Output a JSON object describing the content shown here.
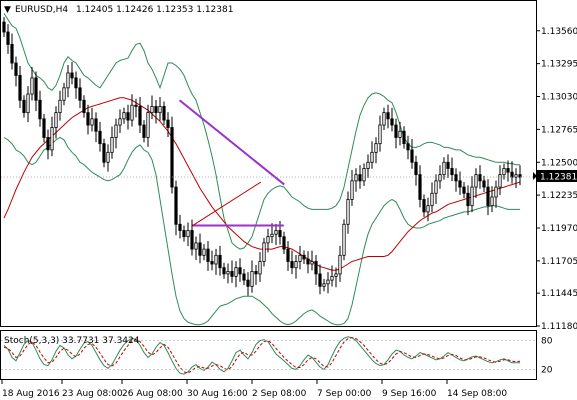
{
  "header": {
    "symbol": "EURUSD,H4",
    "ohlc": "1.12405 1.12426 1.12353 1.12381",
    "dropdown_glyph": "▼"
  },
  "indicator": {
    "label": "Stoch(5,3,3) 33.7731 37.3424"
  },
  "colors": {
    "bg": "#ffffff",
    "axis": "#000000",
    "candle": "#000000",
    "bollinger": "#2e8b57",
    "ma": "#c00000",
    "trendline": "#9932cc",
    "stoch_main": "#2e8b57",
    "stoch_signal": "#c00000",
    "price_tag_bg": "#000000",
    "price_tag_text": "#ffffff"
  },
  "chart_data": [
    {
      "type": "candlestick",
      "symbol": "EURUSD",
      "timeframe": "H4",
      "ylim": [
        1.1118,
        1.138
      ],
      "y_ticks": [
        "1.13560",
        "1.13295",
        "1.13030",
        "1.12765",
        "1.12500",
        "1.12235",
        "1.11970",
        "1.11705",
        "1.11445",
        "1.11180"
      ],
      "x_ticks": [
        "18 Aug 2016",
        "23 Aug 08:00",
        "26 Aug 08:00",
        "30 Aug 16:00",
        "2 Sep 08:00",
        "7 Sep 00:00",
        "9 Sep 16:00",
        "14 Sep 08:00"
      ],
      "current_price": "1.12381",
      "close": [
        1.1355,
        1.1345,
        1.133,
        1.132,
        1.13,
        1.129,
        1.1305,
        1.1318,
        1.13,
        1.1285,
        1.127,
        1.126,
        1.1278,
        1.129,
        1.13,
        1.131,
        1.1322,
        1.1318,
        1.131,
        1.13,
        1.129,
        1.128,
        1.1285,
        1.1275,
        1.1265,
        1.125,
        1.1258,
        1.127,
        1.128,
        1.1285,
        1.129,
        1.1284,
        1.1296,
        1.1295,
        1.128,
        1.127,
        1.129,
        1.1295,
        1.129,
        1.1295,
        1.1284,
        1.1278,
        1.123,
        1.12,
        1.1195,
        1.119,
        1.1195,
        1.118,
        1.1185,
        1.1175,
        1.118,
        1.117,
        1.1168,
        1.1175,
        1.1165,
        1.116,
        1.1162,
        1.1158,
        1.1165,
        1.116,
        1.1155,
        1.115,
        1.1162,
        1.116,
        1.117,
        1.1185,
        1.119,
        1.1192,
        1.1195,
        1.119,
        1.118,
        1.117,
        1.1165,
        1.117,
        1.1175,
        1.1172,
        1.1168,
        1.117,
        1.116,
        1.115,
        1.1152,
        1.1155,
        1.1158,
        1.116,
        1.1175,
        1.12,
        1.122,
        1.1235,
        1.124,
        1.1235,
        1.1245,
        1.125,
        1.1258,
        1.1265,
        1.128,
        1.129,
        1.1285,
        1.128,
        1.127,
        1.1275,
        1.1265,
        1.126,
        1.125,
        1.124,
        1.122,
        1.121,
        1.1215,
        1.1225,
        1.1235,
        1.124,
        1.125,
        1.1245,
        1.124,
        1.1235,
        1.123,
        1.1225,
        1.1215,
        1.123,
        1.124,
        1.1235,
        1.123,
        1.1215,
        1.1222,
        1.123,
        1.124,
        1.1245,
        1.1242,
        1.1238,
        1.124,
        1.1238
      ],
      "bollinger_upper": [
        1.137,
        1.1365,
        1.136,
        1.1358,
        1.135,
        1.134,
        1.133,
        1.1325,
        1.132,
        1.1318,
        1.1315,
        1.131,
        1.1308,
        1.1312,
        1.132,
        1.133,
        1.1335,
        1.1332,
        1.133,
        1.1325,
        1.132,
        1.1318,
        1.1315,
        1.1312,
        1.131,
        1.1315,
        1.132,
        1.1325,
        1.133,
        1.1332,
        1.1333,
        1.1334,
        1.134,
        1.1345,
        1.1346,
        1.134,
        1.133,
        1.1325,
        1.1318,
        1.131,
        1.132,
        1.133,
        1.133,
        1.1328,
        1.1325,
        1.132,
        1.1312,
        1.1305,
        1.13,
        1.129,
        1.128,
        1.1268,
        1.1255,
        1.124,
        1.1222,
        1.1205,
        1.1195,
        1.1185,
        1.1182,
        1.118,
        1.1181,
        1.1185,
        1.119,
        1.12,
        1.121,
        1.122,
        1.1225,
        1.1228,
        1.123,
        1.1231,
        1.123,
        1.1226,
        1.1222,
        1.122,
        1.1218,
        1.1215,
        1.1213,
        1.1212,
        1.1212,
        1.1212,
        1.1212,
        1.1212,
        1.1213,
        1.1215,
        1.122,
        1.123,
        1.1245,
        1.126,
        1.1275,
        1.1288,
        1.1296,
        1.1302,
        1.1305,
        1.1306,
        1.1305,
        1.1303,
        1.13,
        1.1298,
        1.129,
        1.128,
        1.127,
        1.1265,
        1.1262,
        1.1262,
        1.1263,
        1.1265,
        1.1266,
        1.1266,
        1.1265,
        1.1264,
        1.1262,
        1.1262,
        1.1261,
        1.126,
        1.126,
        1.1258,
        1.1256,
        1.1255,
        1.1254,
        1.1254,
        1.1253,
        1.1252,
        1.1251,
        1.125,
        1.125,
        1.125,
        1.1249,
        1.1249,
        1.1248,
        1.1248
      ],
      "bollinger_lower": [
        1.127,
        1.1268,
        1.1265,
        1.126,
        1.1258,
        1.1255,
        1.125,
        1.1248,
        1.125,
        1.1255,
        1.126,
        1.1262,
        1.1265,
        1.1268,
        1.127,
        1.1268,
        1.1262,
        1.1258,
        1.1255,
        1.125,
        1.1248,
        1.1245,
        1.1242,
        1.124,
        1.1238,
        1.1236,
        1.1235,
        1.1236,
        1.1238,
        1.124,
        1.1245,
        1.1252,
        1.1258,
        1.1262,
        1.1264,
        1.126,
        1.1258,
        1.1252,
        1.124,
        1.122,
        1.12,
        1.118,
        1.116,
        1.1142,
        1.113,
        1.1124,
        1.1121,
        1.112,
        1.1119,
        1.1119,
        1.112,
        1.1122,
        1.1126,
        1.113,
        1.1134,
        1.1135,
        1.1136,
        1.1138,
        1.114,
        1.1141,
        1.1142,
        1.1142,
        1.1142,
        1.114,
        1.1138,
        1.1135,
        1.1132,
        1.1128,
        1.1125,
        1.1122,
        1.112,
        1.1119,
        1.112,
        1.1122,
        1.1125,
        1.1128,
        1.113,
        1.1131,
        1.1129,
        1.1126,
        1.1124,
        1.1122,
        1.112,
        1.1119,
        1.1119,
        1.112,
        1.1124,
        1.1135,
        1.115,
        1.1165,
        1.118,
        1.1192,
        1.12,
        1.1205,
        1.121,
        1.1215,
        1.1218,
        1.122,
        1.1218,
        1.1212,
        1.1205,
        1.12,
        1.1198,
        1.1197,
        1.1197,
        1.1198,
        1.12,
        1.1201,
        1.1202,
        1.1203,
        1.1205,
        1.1206,
        1.1207,
        1.1208,
        1.1209,
        1.121,
        1.121,
        1.1211,
        1.1212,
        1.1213,
        1.1214,
        1.1214,
        1.1215,
        1.1215,
        1.1214,
        1.1213,
        1.1212,
        1.1212,
        1.1212,
        1.1212
      ],
      "moving_average": [
        1.1205,
        1.1212,
        1.122,
        1.1228,
        1.1235,
        1.1242,
        1.1248,
        1.1254,
        1.1258,
        1.1262,
        1.1265,
        1.1268,
        1.1271,
        1.1274,
        1.1277,
        1.128,
        1.1283,
        1.1286,
        1.1288,
        1.129,
        1.1292,
        1.1294,
        1.1295,
        1.1296,
        1.1297,
        1.1298,
        1.1299,
        1.13,
        1.1301,
        1.1302,
        1.1302,
        1.1301,
        1.13,
        1.1298,
        1.1296,
        1.1294,
        1.1292,
        1.1289,
        1.1286,
        1.1283,
        1.1279,
        1.1275,
        1.127,
        1.1265,
        1.1259,
        1.1253,
        1.1247,
        1.1241,
        1.1235,
        1.1229,
        1.1224,
        1.1219,
        1.1214,
        1.121,
        1.1206,
        1.1202,
        1.1198,
        1.1195,
        1.1192,
        1.1189,
        1.1186,
        1.1184,
        1.1182,
        1.1181,
        1.118,
        1.118,
        1.118,
        1.118,
        1.1181,
        1.1182,
        1.1182,
        1.1181,
        1.118,
        1.1178,
        1.1176,
        1.1174,
        1.1172,
        1.117,
        1.1168,
        1.1166,
        1.1165,
        1.1164,
        1.1163,
        1.1163,
        1.1164,
        1.1166,
        1.1168,
        1.117,
        1.1171,
        1.1172,
        1.1173,
        1.1174,
        1.1174,
        1.1174,
        1.1174,
        1.1174,
        1.1175,
        1.1178,
        1.1182,
        1.1186,
        1.119,
        1.1194,
        1.1197,
        1.12,
        1.1203,
        1.1205,
        1.1207,
        1.1209,
        1.121,
        1.1212,
        1.1214,
        1.1216,
        1.1217,
        1.1218,
        1.1219,
        1.122,
        1.1221,
        1.1222,
        1.1223,
        1.1224,
        1.1225,
        1.1226,
        1.1227,
        1.1228,
        1.1229,
        1.123,
        1.1231,
        1.1232,
        1.1233,
        1.1234
      ],
      "trendline_resistance": [
        [
          0.337,
          1.13
        ],
        [
          0.538,
          1.1232
        ]
      ],
      "trendline_support": [
        [
          0.362,
          1.1199
        ],
        [
          0.537,
          1.1199
        ]
      ],
      "trendline_rising": [
        [
          0.362,
          1.1199
        ],
        [
          0.493,
          1.1234
        ]
      ]
    },
    {
      "type": "line",
      "title": "Stoch(5,3,3) 33.7731 37.3424",
      "ylim": [
        0,
        100
      ],
      "y_ticks": [
        "80",
        "20"
      ],
      "series": [
        {
          "name": "main",
          "values": [
            70,
            62,
            45,
            38,
            55,
            72,
            80,
            76,
            60,
            42,
            30,
            28,
            40,
            58,
            70,
            65,
            50,
            42,
            48,
            62,
            75,
            78,
            70,
            55,
            40,
            28,
            22,
            30,
            45,
            60,
            72,
            80,
            85,
            82,
            70,
            55,
            45,
            52,
            66,
            76,
            70,
            55,
            38,
            22,
            12,
            10,
            15,
            25,
            30,
            22,
            18,
            25,
            35,
            30,
            20,
            15,
            22,
            38,
            55,
            60,
            50,
            42,
            55,
            72,
            80,
            82,
            78,
            65,
            52,
            45,
            38,
            30,
            22,
            20,
            28,
            40,
            50,
            45,
            35,
            25,
            20,
            30,
            48,
            65,
            78,
            85,
            88,
            86,
            80,
            70,
            60,
            50,
            40,
            32,
            28,
            30,
            40,
            52,
            60,
            58,
            50,
            45,
            42,
            48,
            55,
            52,
            48,
            44,
            40,
            42,
            48,
            55,
            50,
            45,
            40,
            38,
            42,
            46,
            48,
            44,
            40,
            36,
            34,
            36,
            40,
            42,
            38,
            34,
            34,
            34
          ]
        },
        {
          "name": "signal",
          "values": [
            66,
            64,
            55,
            45,
            48,
            60,
            72,
            77,
            70,
            56,
            44,
            34,
            35,
            45,
            58,
            64,
            60,
            52,
            46,
            52,
            64,
            72,
            74,
            66,
            54,
            41,
            30,
            27,
            33,
            46,
            59,
            70,
            79,
            82,
            78,
            68,
            56,
            50,
            55,
            65,
            72,
            66,
            53,
            38,
            24,
            15,
            12,
            18,
            24,
            26,
            23,
            22,
            27,
            30,
            28,
            22,
            19,
            26,
            40,
            52,
            56,
            50,
            50,
            58,
            70,
            78,
            80,
            74,
            64,
            54,
            45,
            37,
            30,
            24,
            24,
            30,
            40,
            45,
            42,
            34,
            26,
            25,
            34,
            49,
            64,
            77,
            84,
            86,
            84,
            78,
            70,
            60,
            50,
            40,
            33,
            30,
            33,
            42,
            52,
            57,
            55,
            50,
            46,
            45,
            49,
            52,
            51,
            48,
            44,
            42,
            44,
            49,
            51,
            49,
            44,
            40,
            40,
            43,
            46,
            46,
            44,
            40,
            37,
            35,
            37,
            40,
            40,
            37,
            36,
            37
          ]
        }
      ]
    }
  ]
}
